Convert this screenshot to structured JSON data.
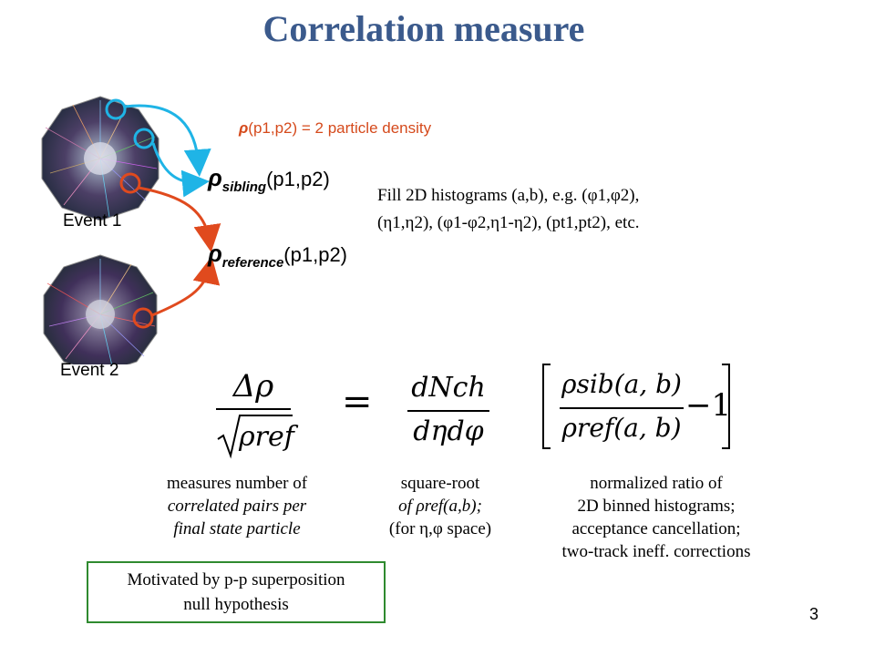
{
  "title": "Correlation measure",
  "events": {
    "event1_label": "Event 1",
    "event2_label": "Event 2"
  },
  "density_text": {
    "rho": "ρ",
    "args": "(p1,p2)",
    "rest": " = 2 particle density"
  },
  "sibling": {
    "rho": "ρ",
    "sub": "sibling",
    "args": "(p1,p2)"
  },
  "reference": {
    "rho": "ρ",
    "sub": "reference",
    "args": "(p1,p2)"
  },
  "fill_text": {
    "line1": "Fill 2D histograms (a,b), e.g. (φ1,φ2),",
    "line2": "(η1,η2), (φ1-φ2,η1-η2), (pt1,pt2), etc."
  },
  "equation": {
    "lhs_num": "Δρ",
    "lhs_den": "ρref",
    "equals": "=",
    "mid_num": "dNch",
    "mid_den": "dηdφ",
    "rhs_num": "ρsib(a, b)",
    "rhs_den": "ρref(a, b)",
    "minus_one": "−1"
  },
  "descriptions": {
    "left": [
      "measures number of",
      "correlated pairs per",
      "final state particle"
    ],
    "middle": [
      "square-root",
      "of ρref(a,b);",
      "(for η,φ space)"
    ],
    "right": [
      "normalized ratio of",
      "2D binned histograms;",
      "acceptance cancellation;",
      "two-track ineff. corrections"
    ]
  },
  "motivation": [
    "Motivated by p-p superposition",
    "null hypothesis"
  ],
  "page_number": "3",
  "colors": {
    "title": "#3b5a8c",
    "cyan": "#1fb4e6",
    "red": "#e04a1e",
    "green_box": "#2f8a2f"
  }
}
